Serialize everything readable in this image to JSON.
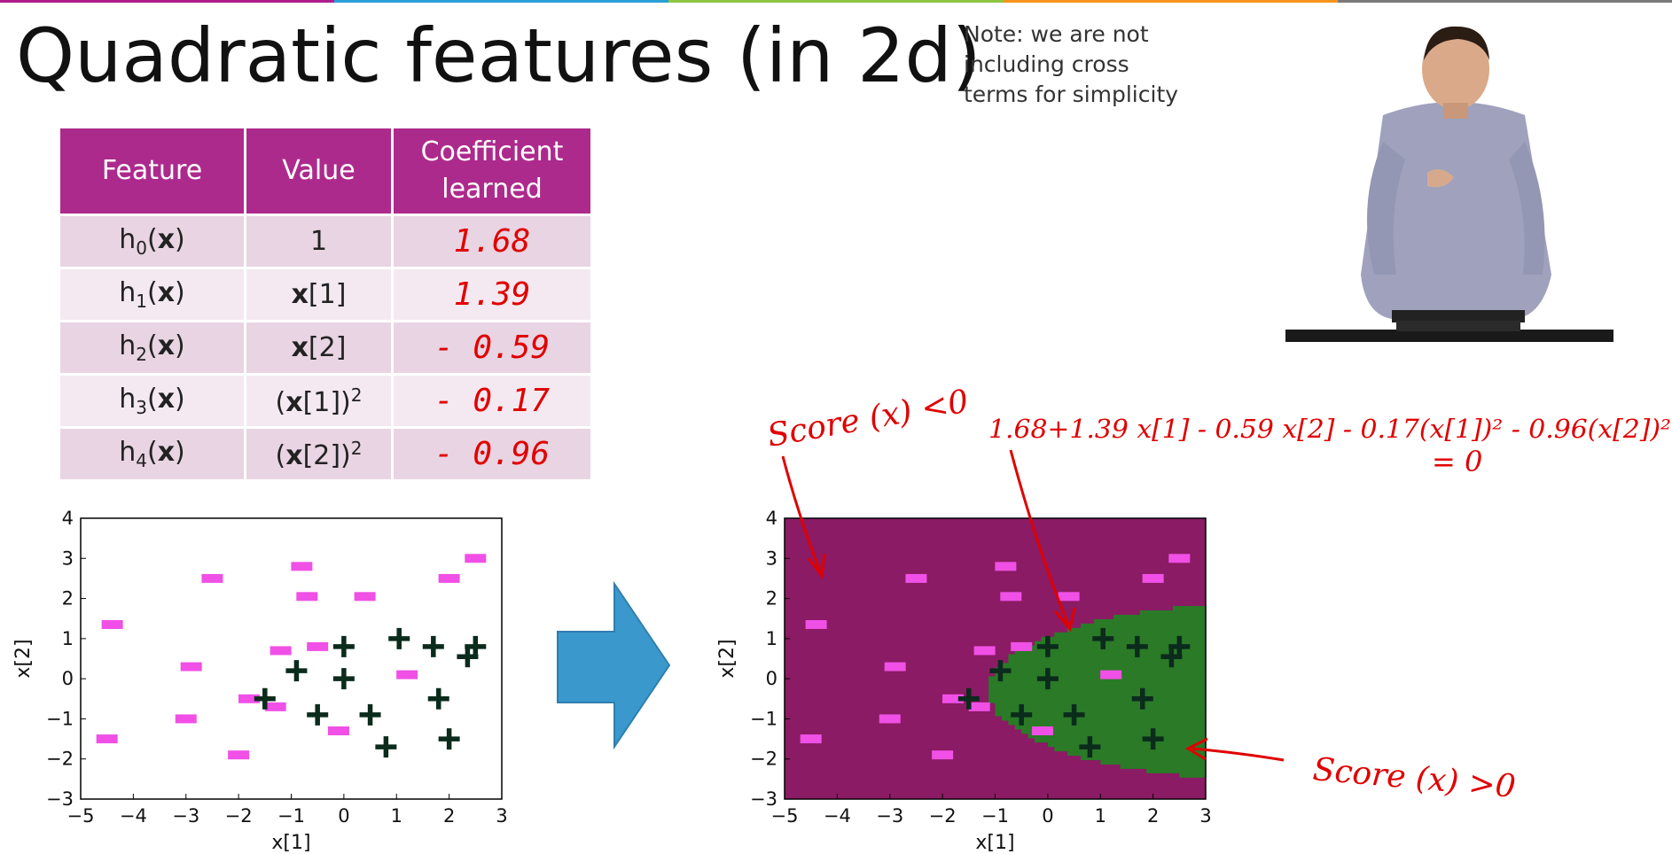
{
  "colors": {
    "accent": "#ad2a8d",
    "plot_negative_region": "#8b1b64",
    "plot_positive_region": "#2a7a27",
    "negative_marker": "#f050e6",
    "positive_marker": "#0b2b1c",
    "arrow": "#3a98cc",
    "annotation": "#e00000",
    "top_stripe": [
      "#b01e8c",
      "#2aa0d8",
      "#8dc63f",
      "#f7941d",
      "#7a7a7a"
    ]
  },
  "slide": {
    "title": "Quadratic features (in 2d)",
    "note": [
      "Note: we are not",
      "including cross",
      "terms for simplicity"
    ]
  },
  "table": {
    "headers": [
      "Feature",
      "Value",
      "Coefficient learned"
    ],
    "header_lines": {
      "coef_line1": "Coefficient",
      "coef_line2": "learned"
    },
    "rows": [
      {
        "feature_base": "h",
        "feature_sub": "0",
        "feature_arg": "(x)",
        "value": "1",
        "coefficient": "1.68"
      },
      {
        "feature_base": "h",
        "feature_sub": "1",
        "feature_arg": "(x)",
        "value": "x[1]",
        "coefficient": "1.39"
      },
      {
        "feature_base": "h",
        "feature_sub": "2",
        "feature_arg": "(x)",
        "value": "x[2]",
        "coefficient": "- 0.59"
      },
      {
        "feature_base": "h",
        "feature_sub": "3",
        "feature_arg": "(x)",
        "value": "(x[1])2",
        "coefficient": "- 0.17"
      },
      {
        "feature_base": "h",
        "feature_sub": "4",
        "feature_arg": "(x)",
        "value": "(x[2])2",
        "coefficient": "- 0.96"
      }
    ]
  },
  "chart_data": [
    {
      "type": "scatter",
      "xlabel": "x[1]",
      "ylabel": "x[2]",
      "xlim": [
        -5,
        3
      ],
      "ylim": [
        -3,
        4
      ],
      "xticks": [
        -5,
        -4,
        -3,
        -2,
        -1,
        0,
        1,
        2,
        3
      ],
      "yticks": [
        -3,
        -2,
        -1,
        0,
        1,
        2,
        3,
        4
      ],
      "negatives": [
        [
          -4.4,
          1.35
        ],
        [
          -2.5,
          2.5
        ],
        [
          -2.9,
          0.3
        ],
        [
          -0.8,
          2.8
        ],
        [
          -0.7,
          2.05
        ],
        [
          0.4,
          2.05
        ],
        [
          -1.2,
          0.7
        ],
        [
          -0.5,
          0.8
        ],
        [
          -1.8,
          -0.5
        ],
        [
          -1.3,
          -0.7
        ],
        [
          -3,
          -1
        ],
        [
          -2,
          -1.9
        ],
        [
          -4.5,
          -1.5
        ],
        [
          -0.1,
          -1.3
        ],
        [
          1.2,
          0.1
        ],
        [
          2,
          2.5
        ],
        [
          2.5,
          3
        ]
      ],
      "positives": [
        [
          0,
          0.8
        ],
        [
          1.05,
          1
        ],
        [
          1.7,
          0.8
        ],
        [
          2.5,
          0.8
        ],
        [
          2.35,
          0.55
        ],
        [
          -0.9,
          0.2
        ],
        [
          0,
          0
        ],
        [
          -1.5,
          -0.5
        ],
        [
          -0.5,
          -0.9
        ],
        [
          0.5,
          -0.9
        ],
        [
          1.8,
          -0.5
        ],
        [
          0.8,
          -1.7
        ],
        [
          2,
          -1.5
        ]
      ]
    },
    {
      "type": "scatter",
      "xlabel": "x[1]",
      "ylabel": "x[2]",
      "xlim": [
        -5,
        3
      ],
      "ylim": [
        -3,
        4
      ],
      "xticks": [
        -5,
        -4,
        -3,
        -2,
        -1,
        0,
        1,
        2,
        3
      ],
      "yticks": [
        -3,
        -2,
        -1,
        0,
        1,
        2,
        3,
        4
      ],
      "decision_boundary": {
        "w0": 1.68,
        "w1": 1.39,
        "w2": -0.59,
        "w3": -0.17,
        "w4": -0.96
      },
      "negatives": [
        [
          -4.4,
          1.35
        ],
        [
          -2.5,
          2.5
        ],
        [
          -2.9,
          0.3
        ],
        [
          -0.8,
          2.8
        ],
        [
          -0.7,
          2.05
        ],
        [
          0.4,
          2.05
        ],
        [
          -1.2,
          0.7
        ],
        [
          -0.5,
          0.8
        ],
        [
          -1.8,
          -0.5
        ],
        [
          -1.3,
          -0.7
        ],
        [
          -3,
          -1
        ],
        [
          -2,
          -1.9
        ],
        [
          -4.5,
          -1.5
        ],
        [
          -0.1,
          -1.3
        ],
        [
          1.2,
          0.1
        ],
        [
          2,
          2.5
        ],
        [
          2.5,
          3
        ]
      ],
      "positives": [
        [
          0,
          0.8
        ],
        [
          1.05,
          1
        ],
        [
          1.7,
          0.8
        ],
        [
          2.5,
          0.8
        ],
        [
          2.35,
          0.55
        ],
        [
          -0.9,
          0.2
        ],
        [
          0,
          0
        ],
        [
          -1.5,
          -0.5
        ],
        [
          -0.5,
          -0.9
        ],
        [
          0.5,
          -0.9
        ],
        [
          1.8,
          -0.5
        ],
        [
          0.8,
          -1.7
        ],
        [
          2,
          -1.5
        ]
      ]
    }
  ],
  "annotations": {
    "score_neg": "Score (x) <0",
    "boundary_eq": "1.68+1.39 x[1] - 0.59 x[2] - 0.17(x[1])² - 0.96(x[2])²",
    "boundary_eq2": "= 0",
    "score_pos": "Score (x) >0"
  }
}
